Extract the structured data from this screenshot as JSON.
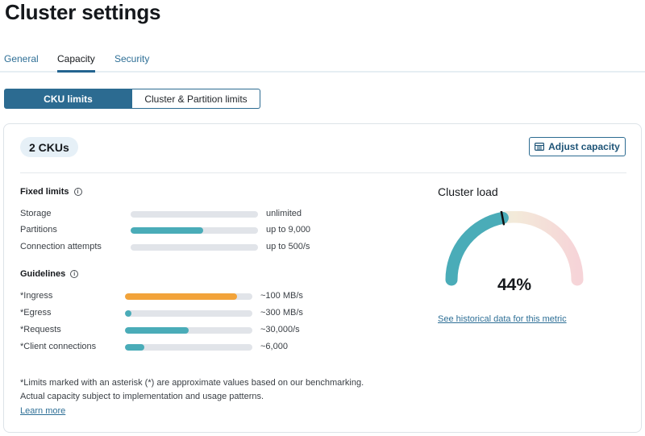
{
  "page": {
    "title": "Cluster settings"
  },
  "tabs": [
    {
      "label": "General",
      "active": false
    },
    {
      "label": "Capacity",
      "active": true
    },
    {
      "label": "Security",
      "active": false
    }
  ],
  "segmented": {
    "left": "CKU limits",
    "right": "Cluster & Partition limits",
    "selected": "CKU limits"
  },
  "card": {
    "cku": "2 CKUs",
    "adjust_label": "Adjust capacity",
    "adjust_icon": "table-icon"
  },
  "fixed_limits": {
    "title": "Fixed limits",
    "rows": [
      {
        "label": "Storage",
        "value": "unlimited",
        "fill_fraction": 0.0,
        "color": "#4aacb8"
      },
      {
        "label": "Partitions",
        "value": "up to 9,000",
        "fill_fraction": 0.57,
        "color": "#4aacb8"
      },
      {
        "label": "Connection attempts",
        "value": "up to 500/s",
        "fill_fraction": 0.0,
        "color": "#4aacb8"
      }
    ]
  },
  "guidelines": {
    "title": "Guidelines",
    "rows": [
      {
        "label": "*Ingress",
        "value": "~100 MB/s",
        "fill_fraction": 0.88,
        "color": "#f2a33a"
      },
      {
        "label": "*Egress",
        "value": "~300 MB/s",
        "fill_fraction": 0.05,
        "color": "#4aacb8"
      },
      {
        "label": "*Requests",
        "value": "~30,000/s",
        "fill_fraction": 0.5,
        "color": "#4aacb8"
      },
      {
        "label": "*Client connections",
        "value": "~6,000",
        "fill_fraction": 0.15,
        "color": "#4aacb8"
      }
    ]
  },
  "footnote": {
    "line1": "*Limits marked with an asterisk (*) are approximate values based on our benchmarking.",
    "line2": "Actual capacity subject to implementation and usage patterns.",
    "learn_more": "Learn more"
  },
  "cluster_load": {
    "title": "Cluster load",
    "percent_value": 44,
    "percent_label": "44%",
    "link": "See historical data for this metric",
    "colors": {
      "fill": "#4aacb8",
      "track_start": "#d6ecec",
      "track_mid": "#f3ead9",
      "track_end": "#f6d4d8",
      "needle": "#111111"
    }
  }
}
